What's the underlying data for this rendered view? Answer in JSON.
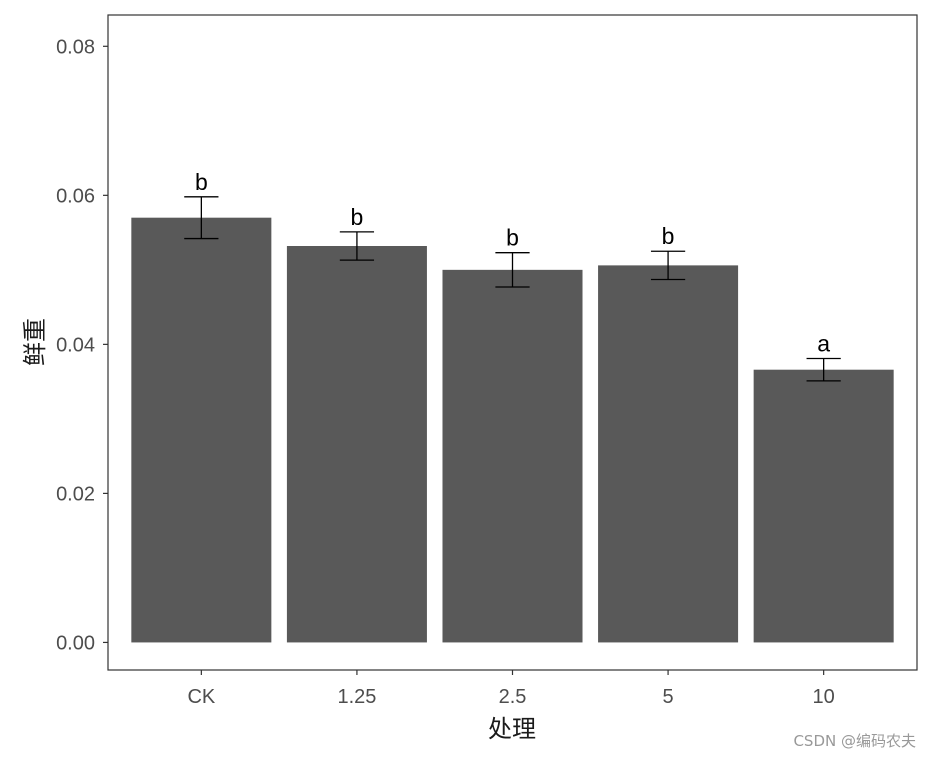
{
  "chart_data": {
    "type": "bar",
    "xlabel": "处理",
    "ylabel": "鲜重",
    "categories": [
      "CK",
      "1.25",
      "2.5",
      "5",
      "10"
    ],
    "values": [
      0.057,
      0.0532,
      0.05,
      0.0506,
      0.0366
    ],
    "error": [
      0.0028,
      0.0019,
      0.0023,
      0.0019,
      0.0015
    ],
    "significance": [
      "b",
      "b",
      "b",
      "b",
      "a"
    ],
    "yticks": [
      "0.00",
      "0.02",
      "0.04",
      "0.06",
      "0.08"
    ],
    "ylim": [
      -0.0037,
      0.0842
    ],
    "grid": false,
    "bar_color": "#595959",
    "frame_color": "#333333"
  },
  "watermark": "CSDN @编码农夫"
}
